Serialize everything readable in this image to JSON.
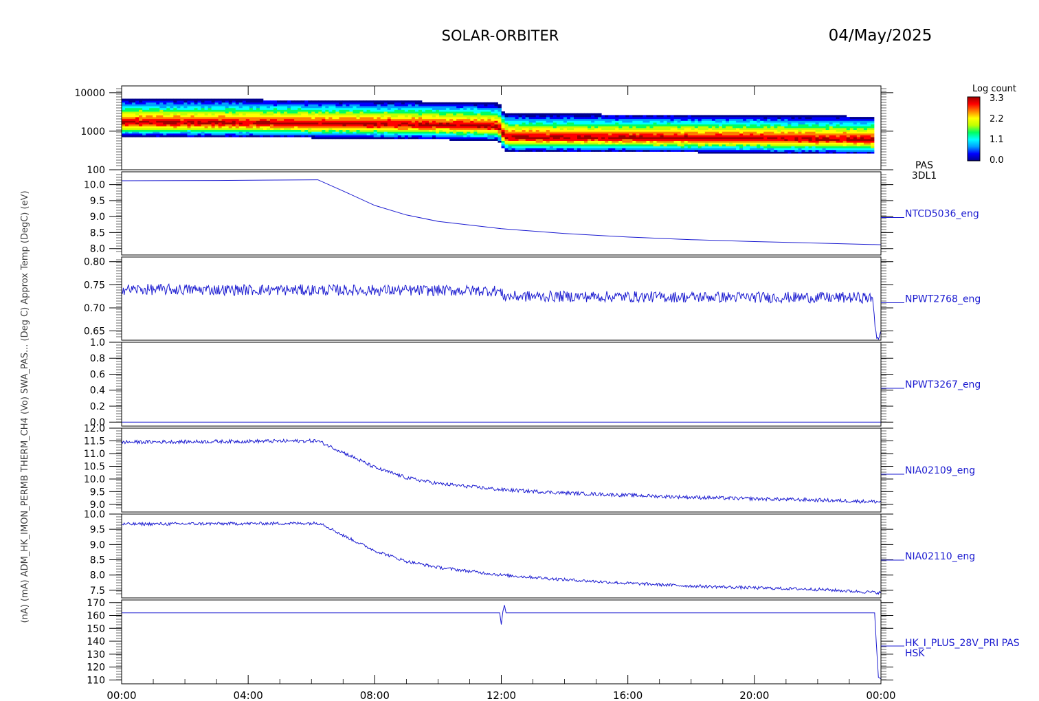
{
  "header": {
    "title": "SOLAR-ORBITER",
    "date": "04/May/2025"
  },
  "colorbar": {
    "label": "Log count",
    "ticks": [
      "3.3",
      "2.2",
      "1.1",
      "0.0"
    ],
    "colors": [
      "#000090",
      "#0000ff",
      "#00a0ff",
      "#00ffff",
      "#00ff60",
      "#c0ff00",
      "#ffff00",
      "#ff8000",
      "#ff0000",
      "#a00000"
    ]
  },
  "left_label": "(nA)  (mA)  ADM_HK_IMON_PERMB  THERM_CH4 (Vo)  SWA_PAS...  (Deg C)  Approx Temp (DegC)  (eV)",
  "chart_data": [
    {
      "type": "heatmap",
      "name": "PAS 3DL1",
      "label_lines": [
        "PAS",
        "3DL1"
      ],
      "ylog": true,
      "ylim": [
        100,
        15000
      ],
      "ytick_values": [
        100,
        1000,
        10000
      ],
      "ytick_labels": [
        "100",
        "1000",
        "10000"
      ],
      "x_ticks": [
        "00:00",
        "04:00",
        "08:00",
        "12:00",
        "16:00",
        "20:00",
        "00:00"
      ],
      "xlim_hours": [
        0,
        24
      ],
      "peak_energy_eV": [
        {
          "h": 0,
          "e": 1700
        },
        {
          "h": 4,
          "e": 1650
        },
        {
          "h": 8.8,
          "e": 1500
        },
        {
          "h": 11.9,
          "e": 1350
        },
        {
          "h": 12.1,
          "e": 700
        },
        {
          "h": 16,
          "e": 680
        },
        {
          "h": 20,
          "e": 650
        },
        {
          "h": 24,
          "e": 600
        }
      ]
    },
    {
      "type": "line",
      "name": "NTCD5036_eng",
      "ylim": [
        7.8,
        10.4
      ],
      "ytick_values": [
        8.0,
        8.5,
        9.0,
        9.5,
        10.0
      ],
      "ytick_labels": [
        "8.0",
        "8.5",
        "9.0",
        "9.5",
        "10.0"
      ],
      "points": [
        {
          "x": 0,
          "y": 10.12
        },
        {
          "x": 3,
          "y": 10.13
        },
        {
          "x": 6.2,
          "y": 10.15
        },
        {
          "x": 7,
          "y": 9.8
        },
        {
          "x": 8,
          "y": 9.35
        },
        {
          "x": 9,
          "y": 9.05
        },
        {
          "x": 10,
          "y": 8.85
        },
        {
          "x": 12,
          "y": 8.62
        },
        {
          "x": 14,
          "y": 8.47
        },
        {
          "x": 16,
          "y": 8.36
        },
        {
          "x": 18,
          "y": 8.28
        },
        {
          "x": 20,
          "y": 8.22
        },
        {
          "x": 22,
          "y": 8.17
        },
        {
          "x": 24,
          "y": 8.12
        }
      ]
    },
    {
      "type": "line",
      "name": "NPWT2768_eng",
      "ylim": [
        0.63,
        0.81
      ],
      "ytick_values": [
        0.65,
        0.7,
        0.75,
        0.8
      ],
      "ytick_labels": [
        "0.65",
        "0.70",
        "0.75",
        "0.80"
      ],
      "noise": 0.012,
      "points": [
        {
          "x": 0,
          "y": 0.74
        },
        {
          "x": 11.9,
          "y": 0.737
        },
        {
          "x": 12.1,
          "y": 0.725
        },
        {
          "x": 23.6,
          "y": 0.722
        },
        {
          "x": 23.75,
          "y": 0.715
        },
        {
          "x": 23.85,
          "y": 0.64
        },
        {
          "x": 24,
          "y": 0.64
        }
      ]
    },
    {
      "type": "line",
      "name": "NPWT3267_eng",
      "ylim": [
        -0.05,
        1.0
      ],
      "ytick_values": [
        0.0,
        0.2,
        0.4,
        0.6,
        0.8,
        1.0
      ],
      "ytick_labels": [
        "0.0",
        "0.2",
        "0.4",
        "0.6",
        "0.8",
        "1.0"
      ],
      "points": [
        {
          "x": 0,
          "y": 0.0
        },
        {
          "x": 24,
          "y": 0.0
        }
      ]
    },
    {
      "type": "line",
      "name": "NIA02109_eng",
      "ylim": [
        8.7,
        12.0
      ],
      "ytick_values": [
        9.0,
        9.5,
        10.0,
        10.5,
        11.0,
        11.5,
        12.0
      ],
      "ytick_labels": [
        "9.0",
        "9.5",
        "10.0",
        "10.5",
        "11.0",
        "11.5",
        "12.0"
      ],
      "noise": 0.07,
      "points": [
        {
          "x": 0,
          "y": 11.45
        },
        {
          "x": 6.2,
          "y": 11.5
        },
        {
          "x": 7,
          "y": 11.05
        },
        {
          "x": 8,
          "y": 10.45
        },
        {
          "x": 9,
          "y": 10.05
        },
        {
          "x": 10,
          "y": 9.82
        },
        {
          "x": 12,
          "y": 9.58
        },
        {
          "x": 14,
          "y": 9.45
        },
        {
          "x": 16,
          "y": 9.36
        },
        {
          "x": 18,
          "y": 9.28
        },
        {
          "x": 20,
          "y": 9.22
        },
        {
          "x": 22,
          "y": 9.17
        },
        {
          "x": 24,
          "y": 9.1
        }
      ]
    },
    {
      "type": "line",
      "name": "NIA02110_eng",
      "ylim": [
        7.25,
        10.0
      ],
      "ytick_values": [
        7.5,
        8.0,
        8.5,
        9.0,
        9.5,
        10.0
      ],
      "ytick_labels": [
        "7.5",
        "8.0",
        "8.5",
        "9.0",
        "9.5",
        "10.0"
      ],
      "noise": 0.05,
      "points": [
        {
          "x": 0,
          "y": 9.67
        },
        {
          "x": 6.3,
          "y": 9.7
        },
        {
          "x": 7,
          "y": 9.3
        },
        {
          "x": 8,
          "y": 8.8
        },
        {
          "x": 9,
          "y": 8.45
        },
        {
          "x": 10,
          "y": 8.25
        },
        {
          "x": 12,
          "y": 8.0
        },
        {
          "x": 14,
          "y": 7.85
        },
        {
          "x": 16,
          "y": 7.73
        },
        {
          "x": 18,
          "y": 7.64
        },
        {
          "x": 20,
          "y": 7.58
        },
        {
          "x": 22,
          "y": 7.53
        },
        {
          "x": 24,
          "y": 7.42
        }
      ]
    },
    {
      "type": "line",
      "name": "HK_I_PLUS_28V_PRI PAS HSK",
      "label_lines": [
        "HK_I_PLUS_28V_PRI PAS",
        "HSK"
      ],
      "ylim": [
        107,
        172
      ],
      "ytick_values": [
        110,
        120,
        130,
        140,
        150,
        160,
        170
      ],
      "ytick_labels": [
        "110",
        "120",
        "130",
        "140",
        "150",
        "160",
        "170"
      ],
      "points": [
        {
          "x": 0,
          "y": 162
        },
        {
          "x": 11.95,
          "y": 162
        },
        {
          "x": 12.0,
          "y": 153
        },
        {
          "x": 12.05,
          "y": 163
        },
        {
          "x": 12.1,
          "y": 168
        },
        {
          "x": 12.15,
          "y": 162
        },
        {
          "x": 23.7,
          "y": 162
        },
        {
          "x": 23.8,
          "y": 162
        },
        {
          "x": 23.85,
          "y": 140
        },
        {
          "x": 23.92,
          "y": 112
        },
        {
          "x": 24,
          "y": 111
        }
      ]
    }
  ]
}
